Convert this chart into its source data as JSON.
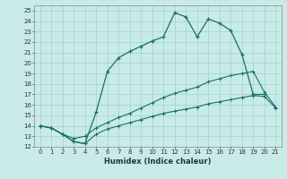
{
  "title": "",
  "xlabel": "Humidex (Indice chaleur)",
  "bg_color": "#c8ebe8",
  "grid_color": "#a0d0cc",
  "line_color": "#1a6e6a",
  "xlim": [
    -0.5,
    21.5
  ],
  "ylim": [
    12,
    25.5
  ],
  "xticks": [
    0,
    1,
    2,
    3,
    4,
    5,
    6,
    7,
    8,
    9,
    10,
    11,
    12,
    13,
    14,
    15,
    16,
    17,
    18,
    19,
    20,
    21
  ],
  "yticks": [
    12,
    13,
    14,
    15,
    16,
    17,
    18,
    19,
    20,
    21,
    22,
    23,
    24,
    25
  ],
  "curve1_x": [
    0,
    1,
    2,
    3,
    4,
    5,
    6,
    7,
    8,
    9,
    10,
    11,
    12,
    13,
    14,
    15,
    16,
    17,
    18,
    19,
    20
  ],
  "curve1_y": [
    14.0,
    13.8,
    13.2,
    12.5,
    12.3,
    15.3,
    19.2,
    20.5,
    21.1,
    21.6,
    22.1,
    22.5,
    24.8,
    24.4,
    22.5,
    24.2,
    23.8,
    23.1,
    20.8,
    17.0,
    17.0
  ],
  "curve2_x": [
    0,
    1,
    2,
    3,
    4,
    5,
    6,
    7,
    8,
    9,
    10,
    11,
    12,
    13,
    14,
    15,
    16,
    17,
    18,
    19,
    20,
    21
  ],
  "curve2_y": [
    14.0,
    13.8,
    13.2,
    12.8,
    13.0,
    13.8,
    14.3,
    14.8,
    15.2,
    15.7,
    16.2,
    16.7,
    17.1,
    17.4,
    17.7,
    18.2,
    18.5,
    18.8,
    19.0,
    19.2,
    17.2,
    15.8
  ],
  "curve3_x": [
    0,
    1,
    2,
    3,
    4,
    5,
    6,
    7,
    8,
    9,
    10,
    11,
    12,
    13,
    14,
    15,
    16,
    17,
    18,
    19,
    20,
    21
  ],
  "curve3_y": [
    14.0,
    13.8,
    13.2,
    12.5,
    12.3,
    13.2,
    13.7,
    14.0,
    14.3,
    14.6,
    14.9,
    15.2,
    15.4,
    15.6,
    15.8,
    16.1,
    16.3,
    16.5,
    16.7,
    16.9,
    16.8,
    15.7
  ]
}
